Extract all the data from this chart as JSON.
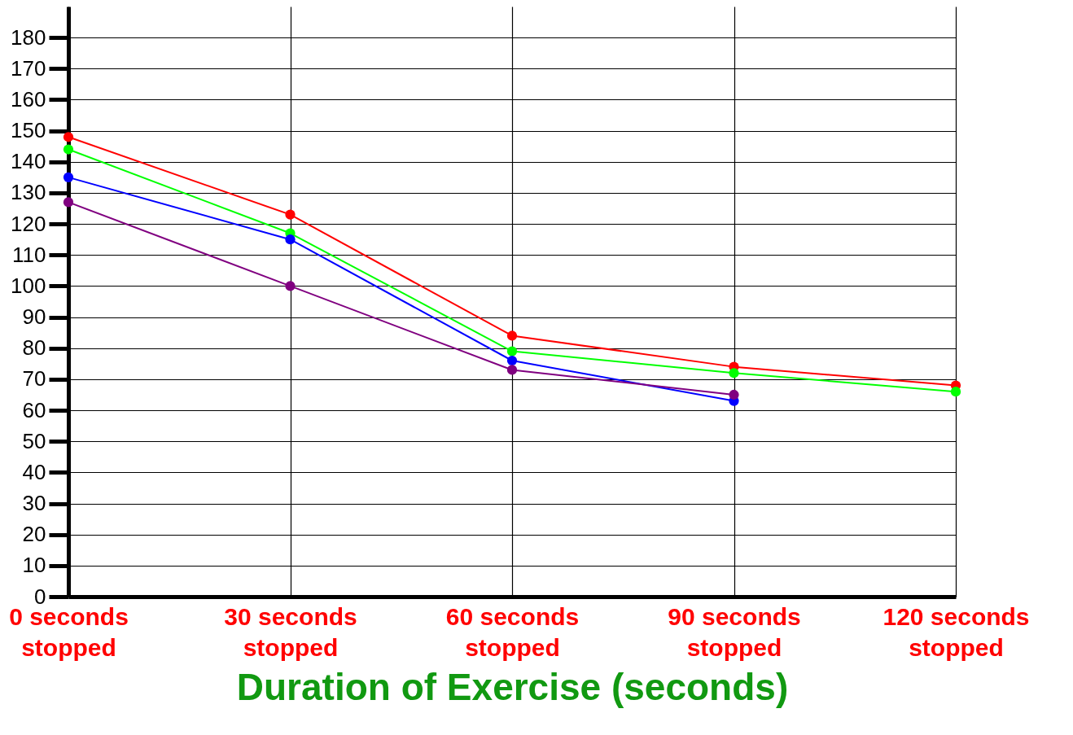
{
  "chart_data": {
    "type": "line",
    "xlabel": "Duration of Exercise (seconds)",
    "categories": [
      "0 seconds stopped",
      "30 seconds stopped",
      "60 seconds stopped",
      "90 seconds stopped",
      "120 seconds stopped"
    ],
    "series": [
      {
        "color": "#ff0000",
        "values": [
          148,
          123,
          84,
          74,
          68
        ]
      },
      {
        "color": "#00ff00",
        "values": [
          144,
          117,
          79,
          72,
          66
        ]
      },
      {
        "color": "#0000ff",
        "values": [
          135,
          115,
          76,
          63,
          null
        ]
      },
      {
        "color": "#800080",
        "values": [
          127,
          100,
          73,
          65,
          null
        ]
      }
    ],
    "ylim": [
      0,
      190
    ],
    "yticks": [
      0,
      10,
      20,
      30,
      40,
      50,
      60,
      70,
      80,
      90,
      100,
      110,
      120,
      130,
      140,
      150,
      160,
      170,
      180
    ],
    "grid": true,
    "marker": "circle",
    "line_style": "solid"
  }
}
